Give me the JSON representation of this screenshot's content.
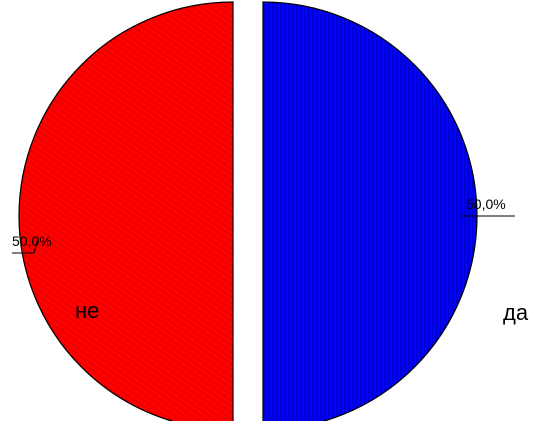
{
  "chart_data": {
    "type": "pie",
    "title": "",
    "slices": [
      {
        "label": "да",
        "value": 50.0,
        "percent_label": "50,0%",
        "color": "#0000ff"
      },
      {
        "label": "не",
        "value": 50.0,
        "percent_label": "50,0%",
        "color": "#ff0000"
      }
    ],
    "exploded": true,
    "legend": "none"
  }
}
